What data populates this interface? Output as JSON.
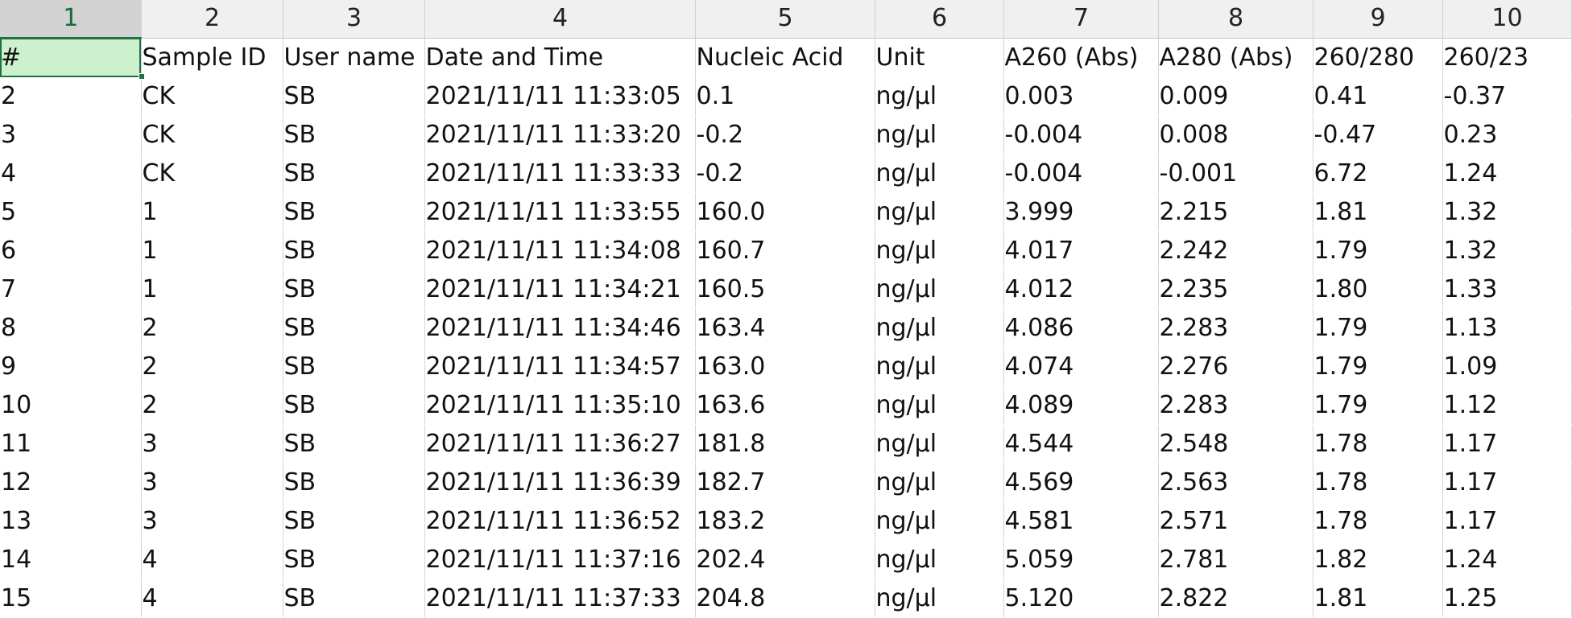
{
  "column_headers": [
    "1",
    "2",
    "3",
    "4",
    "5",
    "6",
    "7",
    "8",
    "9",
    "10"
  ],
  "selected_column_index": 0,
  "header_row": [
    "#",
    "Sample ID",
    "User name",
    "Date and Time",
    "Nucleic Acid",
    "Unit",
    "A260 (Abs)",
    "A280 (Abs)",
    "260/280",
    "260/23"
  ],
  "rows": [
    [
      "2",
      "CK",
      "SB",
      "2021/11/11 11:33:05",
      "0.1",
      "ng/µl",
      "0.003",
      "0.009",
      "0.41",
      "-0.37"
    ],
    [
      "3",
      "CK",
      "SB",
      "2021/11/11 11:33:20",
      "-0.2",
      "ng/µl",
      "-0.004",
      "0.008",
      "-0.47",
      "0.23"
    ],
    [
      "4",
      "CK",
      "SB",
      "2021/11/11 11:33:33",
      "-0.2",
      "ng/µl",
      "-0.004",
      "-0.001",
      "6.72",
      "1.24"
    ],
    [
      "5",
      "1",
      "SB",
      "2021/11/11 11:33:55",
      "160.0",
      "ng/µl",
      "3.999",
      "2.215",
      "1.81",
      "1.32"
    ],
    [
      "6",
      "1",
      "SB",
      "2021/11/11 11:34:08",
      "160.7",
      "ng/µl",
      "4.017",
      "2.242",
      "1.79",
      "1.32"
    ],
    [
      "7",
      "1",
      "SB",
      "2021/11/11 11:34:21",
      "160.5",
      "ng/µl",
      "4.012",
      "2.235",
      "1.80",
      "1.33"
    ],
    [
      "8",
      "2",
      "SB",
      "2021/11/11 11:34:46",
      "163.4",
      "ng/µl",
      "4.086",
      "2.283",
      "1.79",
      "1.13"
    ],
    [
      "9",
      "2",
      "SB",
      "2021/11/11 11:34:57",
      "163.0",
      "ng/µl",
      "4.074",
      "2.276",
      "1.79",
      "1.09"
    ],
    [
      "10",
      "2",
      "SB",
      "2021/11/11 11:35:10",
      "163.6",
      "ng/µl",
      "4.089",
      "2.283",
      "1.79",
      "1.12"
    ],
    [
      "11",
      "3",
      "SB",
      "2021/11/11 11:36:27",
      "181.8",
      "ng/µl",
      "4.544",
      "2.548",
      "1.78",
      "1.17"
    ],
    [
      "12",
      "3",
      "SB",
      "2021/11/11 11:36:39",
      "182.7",
      "ng/µl",
      "4.569",
      "2.563",
      "1.78",
      "1.17"
    ],
    [
      "13",
      "3",
      "SB",
      "2021/11/11 11:36:52",
      "183.2",
      "ng/µl",
      "4.581",
      "2.571",
      "1.78",
      "1.17"
    ],
    [
      "14",
      "4",
      "SB",
      "2021/11/11 11:37:16",
      "202.4",
      "ng/µl",
      "5.059",
      "2.781",
      "1.82",
      "1.24"
    ],
    [
      "15",
      "4",
      "SB",
      "2021/11/11 11:37:33",
      "204.8",
      "ng/µl",
      "5.120",
      "2.822",
      "1.81",
      "1.25"
    ]
  ],
  "colors": {
    "active_cell_fill": "#cdf1cd",
    "selection_border": "#1e7145",
    "selected_header_text": "#166b3a"
  }
}
